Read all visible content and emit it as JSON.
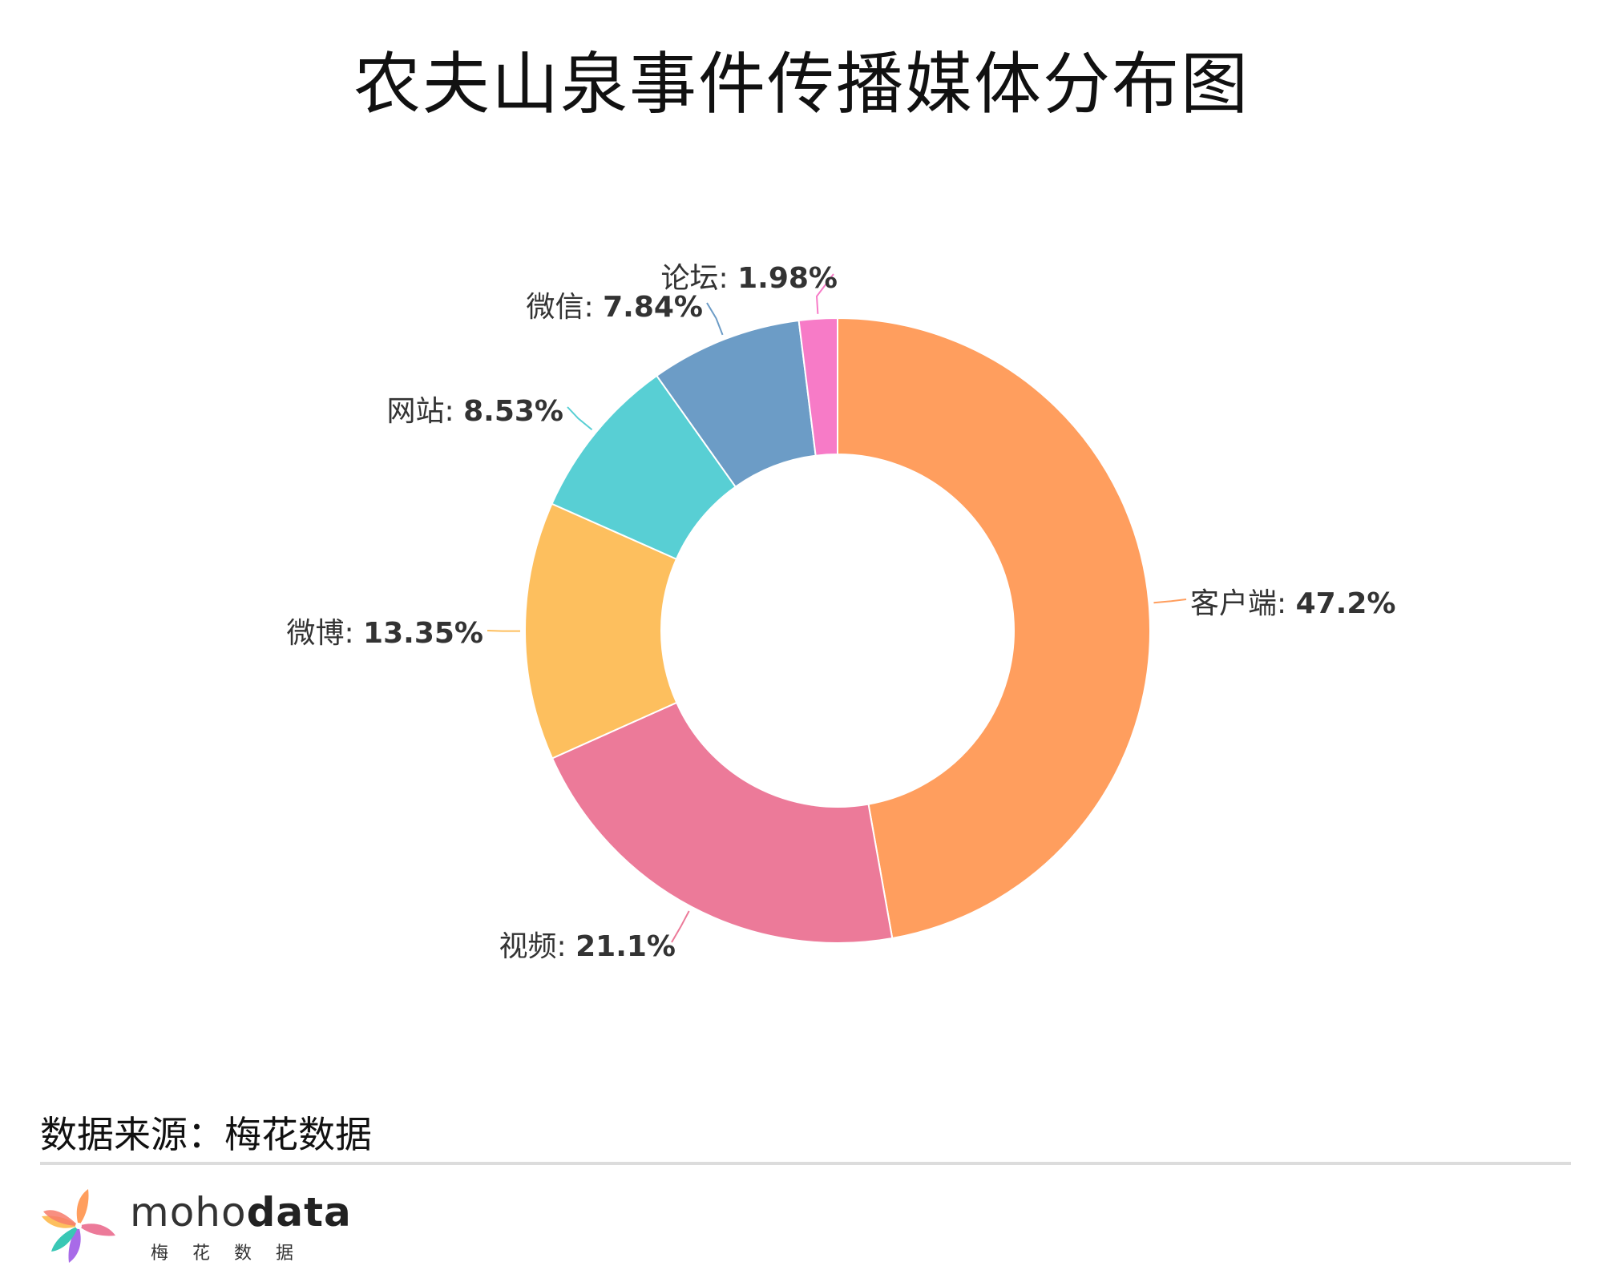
{
  "title": "农夫山泉事件传播媒体分布图",
  "source_note": "数据来源：梅花数据",
  "brand": {
    "name_part1": "moho",
    "name_part2": "data",
    "subtitle": "梅花数据"
  },
  "chart_data": {
    "type": "pie",
    "donut": true,
    "title": "农夫山泉事件传播媒体分布图",
    "slices": [
      {
        "name": "客户端",
        "value": 47.2,
        "label": "47.2%",
        "color": "#FF9E5E"
      },
      {
        "name": "视频",
        "value": 21.1,
        "label": "21.1%",
        "color": "#EC7A99"
      },
      {
        "name": "微博",
        "value": 13.35,
        "label": "13.35%",
        "color": "#FDBF5E"
      },
      {
        "name": "网站",
        "value": 8.53,
        "label": "8.53%",
        "color": "#58CFD4"
      },
      {
        "name": "微信",
        "value": 7.84,
        "label": "7.84%",
        "color": "#6C9CC6"
      },
      {
        "name": "论坛",
        "value": 1.98,
        "label": "1.98%",
        "color": "#F77BC7"
      }
    ],
    "start_angle": "12 o'clock",
    "direction": "clockwise"
  }
}
